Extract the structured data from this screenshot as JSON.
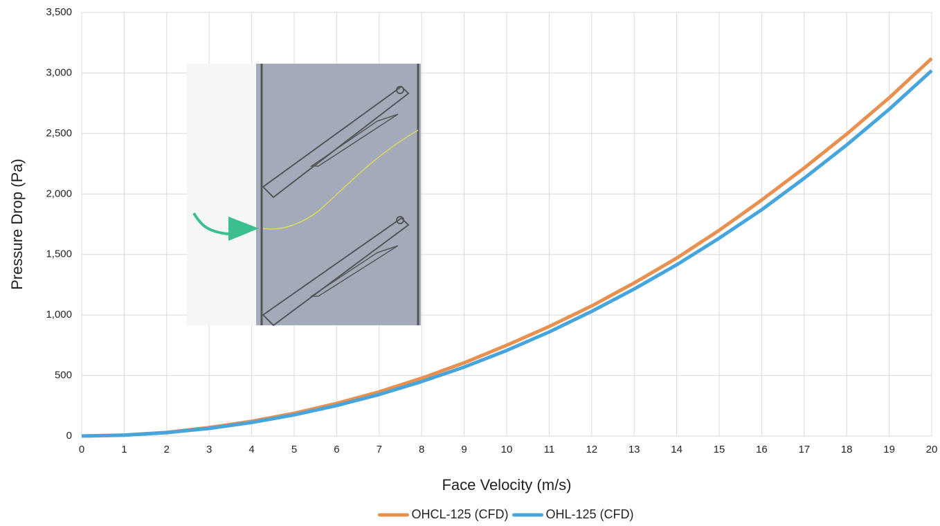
{
  "chart_data": {
    "type": "line",
    "x_label": "Face Velocity (m/s)",
    "y_label": "Pressure Drop (Pa)",
    "x": [
      0,
      1,
      2,
      3,
      4,
      5,
      6,
      7,
      8,
      9,
      10,
      11,
      12,
      13,
      14,
      15,
      16,
      17,
      18,
      19,
      20
    ],
    "series": [
      {
        "name": "OHCL-125 (CFD)",
        "color": "#e8904f",
        "values": [
          0,
          8,
          30,
          70,
          122,
          188,
          270,
          365,
          478,
          605,
          750,
          905,
          1075,
          1265,
          1470,
          1700,
          1950,
          2215,
          2495,
          2795,
          3120
        ]
      },
      {
        "name": "OHL-125 (CFD)",
        "color": "#45a5dc",
        "values": [
          0,
          7,
          28,
          63,
          112,
          175,
          252,
          343,
          450,
          570,
          707,
          860,
          1030,
          1215,
          1415,
          1635,
          1870,
          2130,
          2405,
          2700,
          3020
        ]
      }
    ],
    "xlim": [
      0,
      20
    ],
    "xticks": [
      0,
      1,
      2,
      3,
      4,
      5,
      6,
      7,
      8,
      9,
      10,
      11,
      12,
      13,
      14,
      15,
      16,
      17,
      18,
      19,
      20
    ],
    "ylim": [
      0,
      3500
    ],
    "yticks": [
      0,
      500,
      {
        "value": 1000,
        "label": "1,000"
      },
      {
        "value": 1500,
        "label": "1,500"
      },
      {
        "value": 2000,
        "label": "2,000"
      },
      {
        "value": 2500,
        "label": "2,500"
      },
      {
        "value": 3000,
        "label": "3,000"
      },
      {
        "value": 3500,
        "label": "3,500"
      }
    ],
    "grid": true,
    "legend": "bottom"
  }
}
